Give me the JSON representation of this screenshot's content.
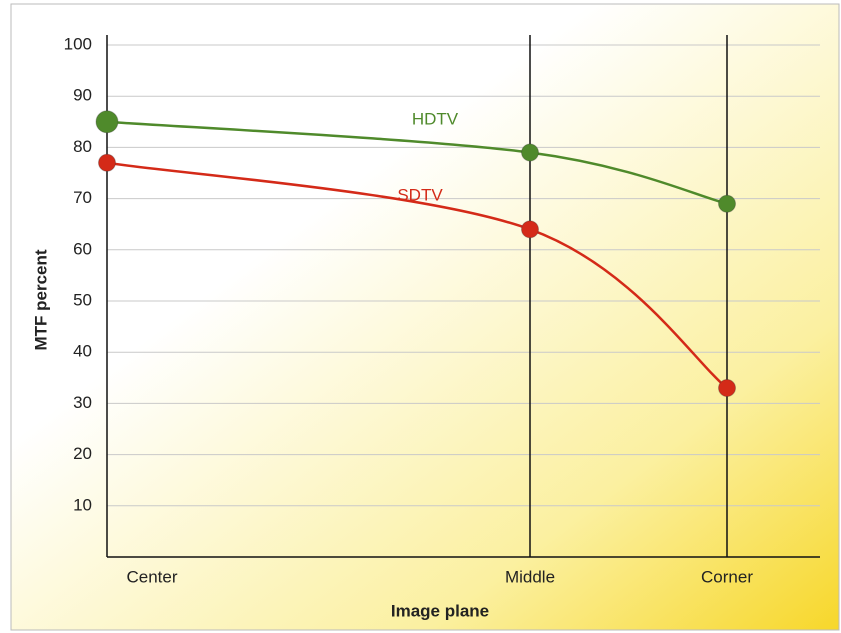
{
  "chart_data": {
    "type": "line",
    "x_label": "Image plane",
    "y_label": "MTF percent",
    "categories": [
      "Center",
      "Middle",
      "Corner"
    ],
    "series": [
      {
        "name": "HDTV",
        "color": "#4f8a2b",
        "values": [
          85,
          79,
          69
        ]
      },
      {
        "name": "SDTV",
        "color": "#d42a18",
        "values": [
          77,
          64,
          33
        ]
      }
    ],
    "ylim": [
      0,
      100
    ],
    "yticks": [
      10,
      20,
      30,
      40,
      50,
      60,
      70,
      80,
      90,
      100
    ],
    "grid": true
  }
}
